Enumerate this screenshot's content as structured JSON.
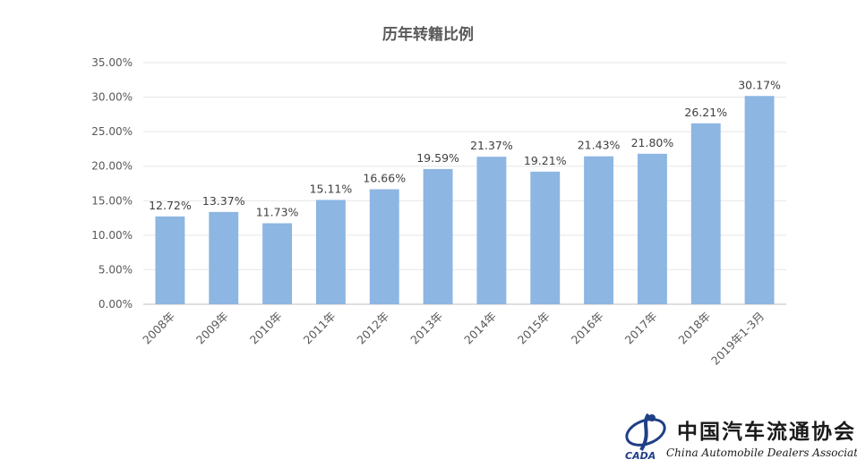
{
  "chart_data": {
    "type": "bar",
    "title": "历年转籍比例",
    "categories": [
      "2008年",
      "2009年",
      "2010年",
      "2011年",
      "2012年",
      "2013年",
      "2014年",
      "2015年",
      "2016年",
      "2017年",
      "2018年",
      "2019年1-3月"
    ],
    "values": [
      12.72,
      13.37,
      11.73,
      15.11,
      16.66,
      19.59,
      21.37,
      19.21,
      21.43,
      21.8,
      26.21,
      30.17
    ],
    "data_labels": [
      "12.72%",
      "13.37%",
      "11.73%",
      "15.11%",
      "16.66%",
      "19.59%",
      "21.37%",
      "19.21%",
      "21.43%",
      "21.80%",
      "26.21%",
      "30.17%"
    ],
    "yticks": [
      "0.00%",
      "5.00%",
      "10.00%",
      "15.00%",
      "20.00%",
      "25.00%",
      "30.00%",
      "35.00%"
    ],
    "ylim": [
      0,
      35
    ],
    "ystep": 5,
    "grid": true,
    "bar_color": "#8DB6E2"
  },
  "logo": {
    "name_cn": "中国汽车流通协会",
    "name_en": "China Automobile Dealers Association",
    "abbr": "CADA"
  }
}
